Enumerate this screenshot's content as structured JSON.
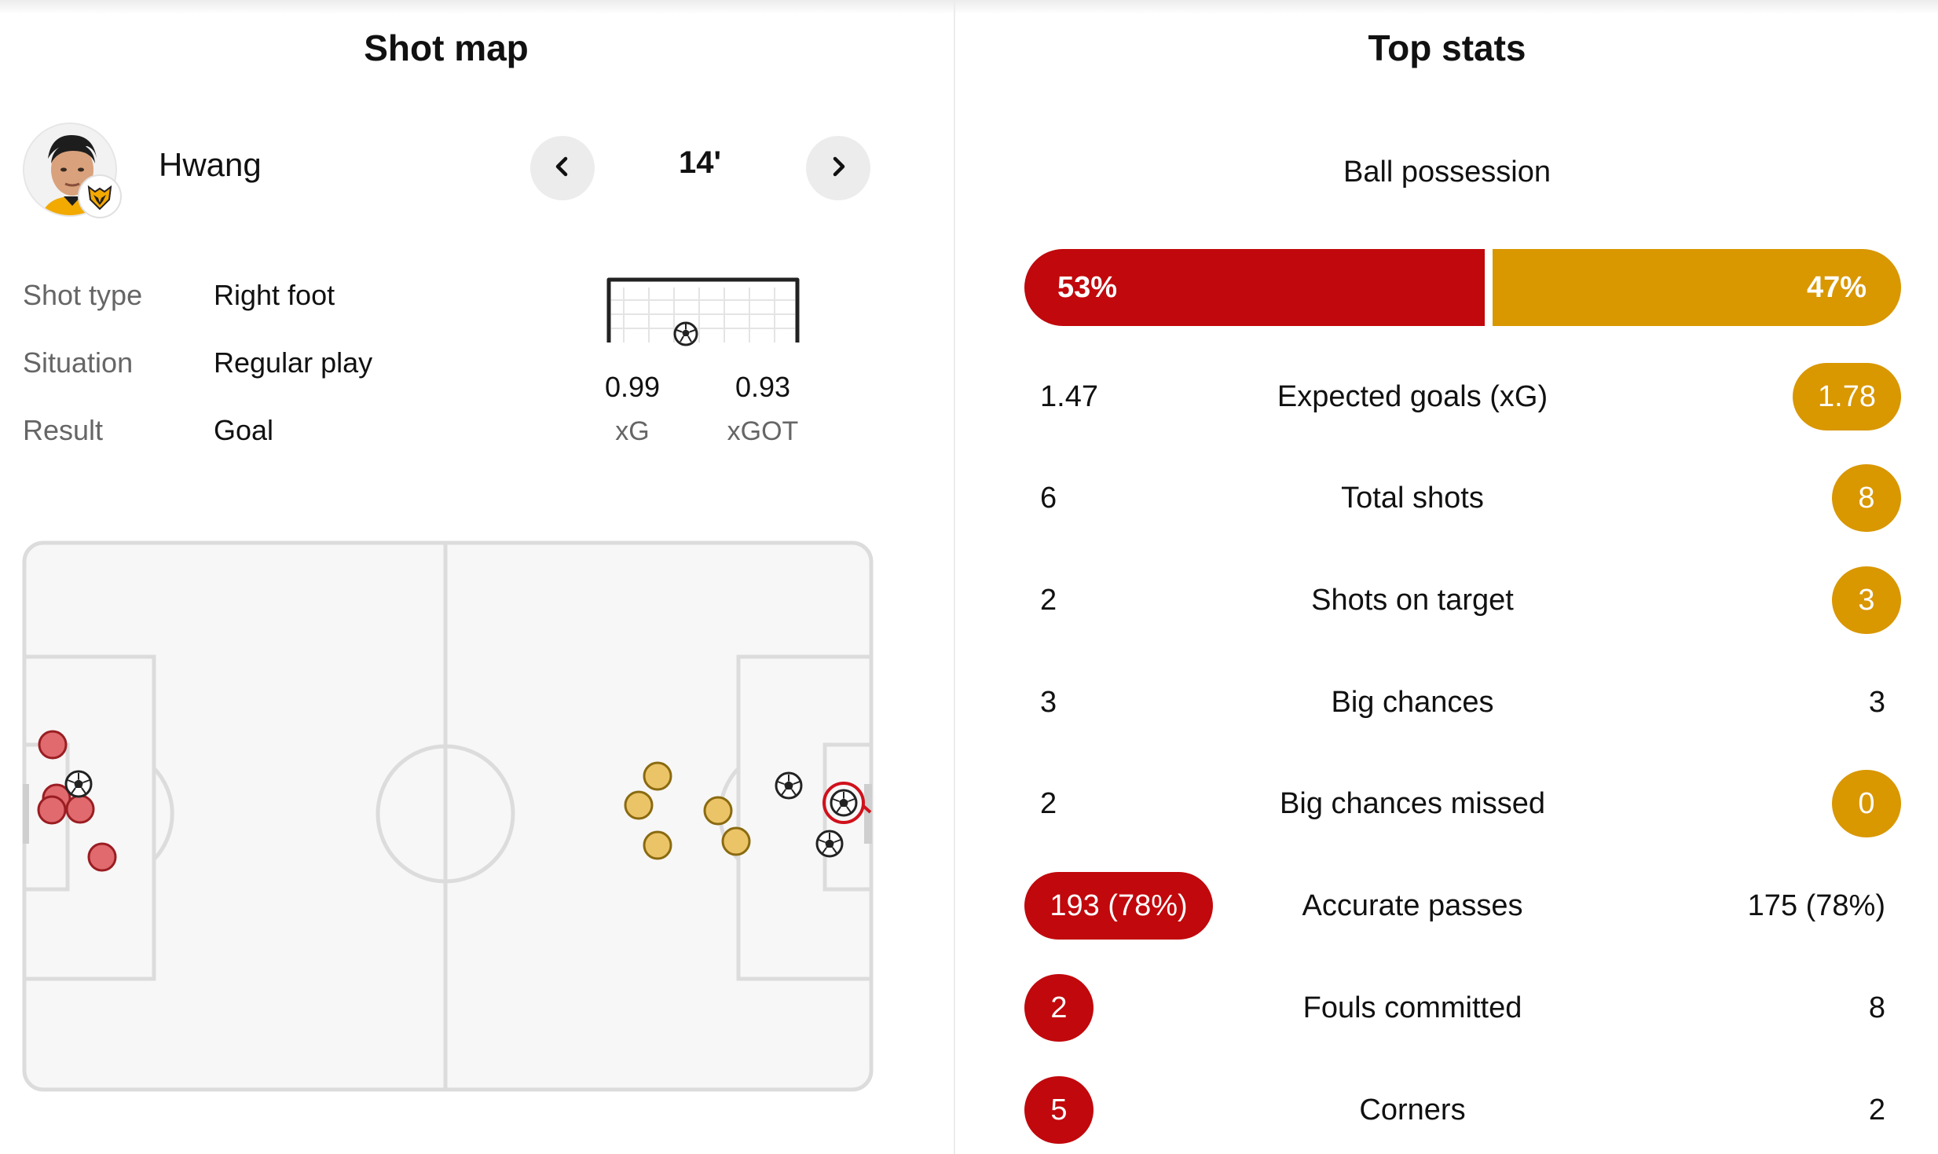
{
  "shot_map": {
    "title": "Shot map",
    "player_name": "Hwang",
    "minute": "14'",
    "info": [
      {
        "label": "Shot type",
        "value": "Right foot"
      },
      {
        "label": "Situation",
        "value": "Regular play"
      },
      {
        "label": "Result",
        "value": "Goal"
      }
    ],
    "xg_value": "0.99",
    "xg_label": "xG",
    "xgot_value": "0.93",
    "xgot_label": "xGOT"
  },
  "top_stats": {
    "title": "Top stats",
    "possession": {
      "label": "Ball possession",
      "home": "53%",
      "away": "47%",
      "home_fraction": 0.53
    },
    "rows": [
      {
        "label": "Expected goals (xG)",
        "home": "1.47",
        "away": "1.78",
        "highlight": "away"
      },
      {
        "label": "Total shots",
        "home": "6",
        "away": "8",
        "highlight": "away"
      },
      {
        "label": "Shots on target",
        "home": "2",
        "away": "3",
        "highlight": "away"
      },
      {
        "label": "Big chances",
        "home": "3",
        "away": "3",
        "highlight": "none"
      },
      {
        "label": "Big chances missed",
        "home": "2",
        "away": "0",
        "highlight": "away"
      },
      {
        "label": "Accurate passes",
        "home": "193 (78%)",
        "away": "175 (78%)",
        "highlight": "home"
      },
      {
        "label": "Fouls committed",
        "home": "2",
        "away": "8",
        "highlight": "home"
      },
      {
        "label": "Corners",
        "home": "5",
        "away": "2",
        "highlight": "home"
      }
    ]
  },
  "colors": {
    "home": "#c1080c",
    "away": "#d99700",
    "home_shot": "#e06a6e",
    "away_shot": "#ecc468"
  },
  "icons": [
    "chevron-left-icon",
    "chevron-right-icon",
    "wolves-badge-icon",
    "football-icon"
  ]
}
